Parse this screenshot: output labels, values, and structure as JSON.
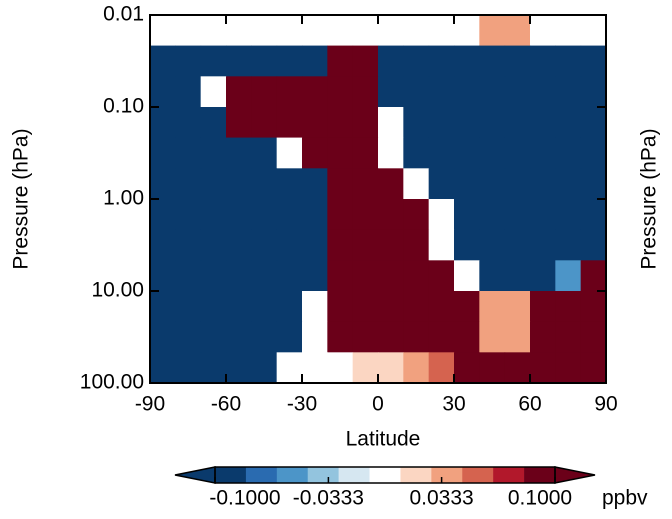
{
  "chart_data": {
    "type": "heatmap",
    "xlabel": "Latitude",
    "ylabel": "Pressure (hPa)",
    "x_edges": [
      -90,
      -80,
      -70,
      -60,
      -50,
      -40,
      -30,
      -20,
      -10,
      0,
      10,
      20,
      30,
      40,
      50,
      60,
      70,
      80,
      90
    ],
    "y_edges": [
      0.01,
      0.0215,
      0.0464,
      0.1,
      0.215,
      0.464,
      1,
      2.15,
      4.64,
      10,
      21.5,
      46.4,
      100
    ],
    "values": [
      [
        0,
        0,
        0,
        0,
        0,
        0,
        0,
        0,
        0,
        0,
        0,
        0,
        0,
        0.04,
        0.04,
        0,
        0,
        0
      ],
      [
        -0.1,
        -0.1,
        -0.1,
        -0.1,
        -0.1,
        -0.1,
        -0.1,
        0.1,
        0.1,
        -0.1,
        -0.1,
        -0.1,
        -0.1,
        -0.1,
        -0.1,
        -0.1,
        -0.1,
        -0.1
      ],
      [
        -0.1,
        -0.1,
        0,
        0.1,
        0.1,
        0.1,
        0.1,
        0.1,
        0.1,
        -0.1,
        -0.1,
        -0.1,
        -0.1,
        -0.1,
        -0.1,
        -0.1,
        -0.1,
        -0.1
      ],
      [
        -0.1,
        -0.1,
        -0.1,
        0.1,
        0.1,
        0.1,
        0.1,
        0.1,
        0.1,
        0,
        -0.1,
        -0.1,
        -0.1,
        -0.1,
        -0.1,
        -0.1,
        -0.1,
        -0.1
      ],
      [
        -0.1,
        -0.1,
        -0.1,
        -0.1,
        -0.1,
        0,
        0.1,
        0.1,
        0.1,
        0,
        -0.1,
        -0.1,
        -0.1,
        -0.1,
        -0.1,
        -0.1,
        -0.1,
        -0.1
      ],
      [
        -0.1,
        -0.1,
        -0.1,
        -0.1,
        -0.1,
        -0.1,
        -0.1,
        0.1,
        0.1,
        0.1,
        0,
        -0.1,
        -0.1,
        -0.1,
        -0.1,
        -0.1,
        -0.1,
        -0.1
      ],
      [
        -0.1,
        -0.1,
        -0.1,
        -0.1,
        -0.1,
        -0.1,
        -0.1,
        0.1,
        0.1,
        0.1,
        0.1,
        0,
        -0.1,
        -0.1,
        -0.1,
        -0.1,
        -0.1,
        -0.1
      ],
      [
        -0.1,
        -0.1,
        -0.1,
        -0.1,
        -0.1,
        -0.1,
        -0.1,
        0.1,
        0.1,
        0.1,
        0.1,
        0,
        -0.1,
        -0.1,
        -0.1,
        -0.1,
        -0.1,
        -0.1
      ],
      [
        -0.1,
        -0.1,
        -0.1,
        -0.1,
        -0.1,
        -0.1,
        -0.1,
        0.1,
        0.1,
        0.1,
        0.1,
        0.1,
        0,
        -0.1,
        -0.1,
        -0.1,
        -0.05,
        0.1
      ],
      [
        -0.1,
        -0.1,
        -0.1,
        -0.1,
        -0.1,
        -0.1,
        0,
        0.1,
        0.1,
        0.1,
        0.1,
        0.1,
        0.1,
        0.04,
        0.04,
        0.1,
        0.1,
        0.1
      ],
      [
        -0.1,
        -0.1,
        -0.1,
        -0.1,
        -0.1,
        -0.1,
        0,
        0.1,
        0.1,
        0.1,
        0.1,
        0.1,
        0.1,
        0.04,
        0.04,
        0.1,
        0.1,
        0.1
      ],
      [
        -0.1,
        -0.1,
        -0.1,
        -0.1,
        -0.1,
        0,
        0,
        0,
        0.02,
        0.02,
        0.04,
        0.05,
        0.1,
        0.1,
        0.1,
        0.1,
        0.1,
        0.1
      ]
    ],
    "xlim": [
      -90,
      90
    ],
    "xticks": [
      -90,
      -60,
      -30,
      0,
      30,
      60,
      90
    ],
    "ylim": [
      0.01,
      100
    ],
    "ylog": true,
    "yticks": [
      {
        "value": 0.01,
        "label": "0.01"
      },
      {
        "value": 0.1,
        "label": "0.10"
      },
      {
        "value": 1,
        "label": "1.00"
      },
      {
        "value": 10,
        "label": "10.00"
      },
      {
        "value": 100,
        "label": "100.00"
      }
    ],
    "colorbar": {
      "clim": [
        -0.1,
        0.1
      ],
      "unit": "ppbv",
      "colors": [
        "#0a3a6c",
        "#2a6bb0",
        "#4c95c8",
        "#93c4de",
        "#d6e7f1",
        "#ffffff",
        "#fbd6c2",
        "#f1a17f",
        "#d5634f",
        "#b2182b",
        "#6b0019"
      ],
      "ticks": [
        {
          "value": -0.1,
          "label": "-0.1000"
        },
        {
          "value": -0.0333,
          "label": "-0.0333"
        },
        {
          "value": 0.0333,
          "label": "0.0333"
        },
        {
          "value": 0.1,
          "label": "0.1000"
        }
      ]
    }
  }
}
